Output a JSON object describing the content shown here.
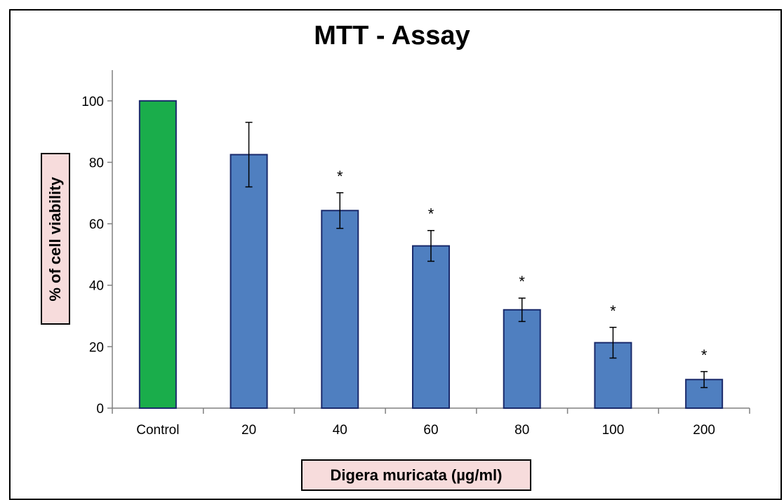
{
  "chart_data": {
    "type": "bar",
    "title": "MTT - Assay",
    "xlabel": "Digera muricata (µg/ml)",
    "ylabel": "% of cell viability",
    "categories": [
      "Control",
      "20",
      "40",
      "60",
      "80",
      "100",
      "200"
    ],
    "values": [
      100,
      82.5,
      64.3,
      52.8,
      32.0,
      21.3,
      9.3
    ],
    "errors": [
      0,
      10.5,
      5.8,
      5.0,
      3.8,
      5.0,
      2.6
    ],
    "significance": [
      "",
      "",
      "*",
      "*",
      "*",
      "*",
      "*"
    ],
    "ylim": [
      0,
      110
    ],
    "yticks": [
      0,
      20,
      40,
      60,
      80,
      100
    ],
    "grid": false,
    "colors": {
      "control": "#1aad4b",
      "treatment": "#4f7fc0",
      "bar_edge": "#1a2a6b",
      "label_box": "#f7dcdc"
    }
  }
}
